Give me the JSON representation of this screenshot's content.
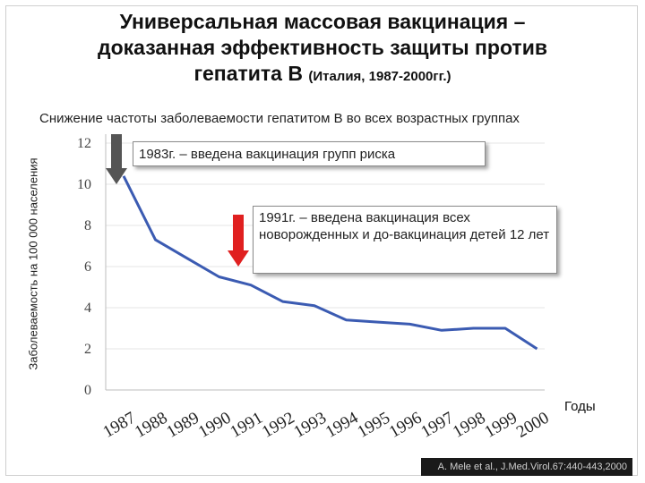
{
  "slide": {
    "title_line1": "Универсальная массовая вакцинация –",
    "title_line2": "доказанная эффективность защиты против",
    "title_line3": "гепатита В",
    "title_suffix": "(Италия, 1987-2000гг.)",
    "subtitle": "Снижение частоты заболеваемости гепатитом В во всех возрастных группах",
    "source": "A. Mele et al., J.Med.Virol.67:440-443,2000"
  },
  "annotations": {
    "a1983": "1983г. – введена вакцинация групп риска",
    "a1991": "1991г. – введена вакцинация всех новорожденных и до-вакцинация детей 12 лет"
  },
  "chart_data": {
    "type": "line",
    "xlabel": "Годы",
    "ylabel": "Заболеваемость на 100 000 населения",
    "x": [
      "1987",
      "1988",
      "1989",
      "1990",
      "1991",
      "1992",
      "1993",
      "1994",
      "1995",
      "1996",
      "1997",
      "1998",
      "1999",
      "2000"
    ],
    "values": [
      10.4,
      7.3,
      6.4,
      5.5,
      5.1,
      4.3,
      4.1,
      3.4,
      3.3,
      3.2,
      2.9,
      3.0,
      3.0,
      2.0
    ],
    "yticks": [
      "0",
      "2",
      "4",
      "6",
      "8",
      "10",
      "12"
    ],
    "ylim": [
      0,
      12
    ],
    "grid": true,
    "line_color": "#3b5bb2",
    "arrow_colors": {
      "a1983": "#555555",
      "a1991": "#e02020"
    }
  }
}
